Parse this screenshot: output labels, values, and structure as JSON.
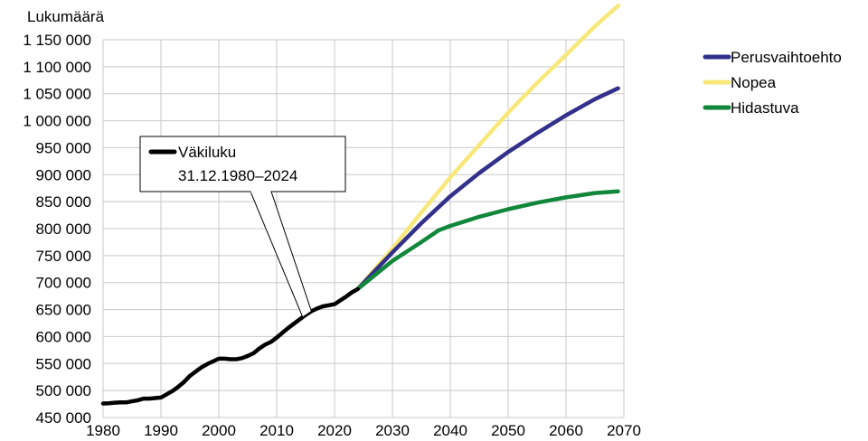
{
  "chart_data": {
    "type": "line",
    "title": "",
    "ylabel": "Lukumäärä",
    "xlabel": "",
    "xlim": [
      1980,
      2070
    ],
    "ylim": [
      450000,
      1150000
    ],
    "grid": true,
    "legend_position": "top-right",
    "x_ticks": [
      1980,
      1990,
      2000,
      2010,
      2020,
      2030,
      2040,
      2050,
      2060,
      2070
    ],
    "y_ticks": [
      450000,
      500000,
      550000,
      600000,
      650000,
      700000,
      750000,
      800000,
      850000,
      900000,
      950000,
      1000000,
      1050000,
      1100000,
      1150000
    ],
    "x_tick_labels": [
      "1980",
      "1990",
      "2000",
      "2010",
      "2020",
      "2030",
      "2040",
      "2050",
      "2060",
      "2070"
    ],
    "y_tick_labels": [
      "450 000",
      "500 000",
      "550 000",
      "600 000",
      "650 000",
      "700 000",
      "750 000",
      "800 000",
      "850 000",
      "900 000",
      "950 000",
      "1 000 000",
      "1 050 000",
      "1 100 000",
      "1 150 000"
    ],
    "annotation": {
      "lines": [
        "Väkiluku",
        "31.12.1980–2024"
      ],
      "color": "#000000",
      "target_years": [
        2014.5,
        2016
      ]
    },
    "history": {
      "color": "#000000",
      "x": [
        1980,
        1981,
        1982,
        1983,
        1984,
        1985,
        1986,
        1987,
        1988,
        1989,
        1990,
        1991,
        1992,
        1993,
        1994,
        1995,
        1996,
        1997,
        1998,
        1999,
        2000,
        2001,
        2002,
        2003,
        2004,
        2005,
        2006,
        2007,
        2008,
        2009,
        2010,
        2011,
        2012,
        2013,
        2014,
        2015,
        2016,
        2017,
        2018,
        2019,
        2020,
        2021,
        2022,
        2023,
        2024
      ],
      "values": [
        476000,
        476500,
        477500,
        478000,
        478000,
        480000,
        482000,
        485000,
        485000,
        486000,
        487000,
        493000,
        499000,
        507000,
        516000,
        527000,
        535000,
        543000,
        549000,
        554000,
        559000,
        559000,
        558000,
        558000,
        560000,
        564000,
        569000,
        578000,
        585000,
        590000,
        598000,
        607000,
        616000,
        624000,
        632000,
        640000,
        647000,
        652000,
        656000,
        658000,
        660000,
        667000,
        674000,
        682000,
        688000
      ]
    },
    "series": [
      {
        "name": "Perusvaihtoehto",
        "color": "#33308c",
        "x": [
          2024,
          2030,
          2035,
          2040,
          2045,
          2050,
          2055,
          2060,
          2065,
          2069
        ],
        "values": [
          688000,
          756000,
          810000,
          860000,
          903000,
          942000,
          977000,
          1010000,
          1040000,
          1060000
        ]
      },
      {
        "name": "Nopea",
        "color": "#f8e87a",
        "x": [
          2024,
          2030,
          2035,
          2040,
          2045,
          2050,
          2055,
          2060,
          2065,
          2069
        ],
        "values": [
          688000,
          763000,
          830000,
          895000,
          955000,
          1015000,
          1070000,
          1122000,
          1175000,
          1213000
        ]
      },
      {
        "name": "Hidastuva",
        "color": "#12873c",
        "x": [
          2024,
          2030,
          2035,
          2038,
          2040,
          2045,
          2050,
          2055,
          2060,
          2065,
          2069
        ],
        "values": [
          688000,
          740000,
          775000,
          797000,
          805000,
          822000,
          836000,
          848000,
          858000,
          866000,
          869000
        ]
      }
    ]
  }
}
